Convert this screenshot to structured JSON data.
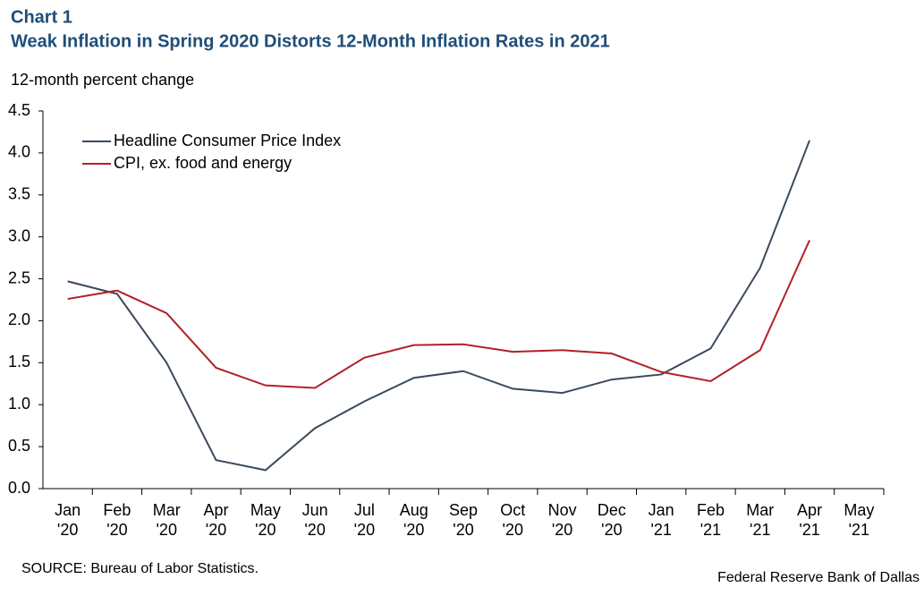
{
  "chart_data": {
    "type": "line",
    "label": "Chart 1",
    "title": "Weak Inflation in Spring 2020 Distorts 12-Month Inflation Rates in 2021",
    "y_label": "12-month percent change",
    "source": "SOURCE: Bureau of Labor Statistics.",
    "credit": "Federal Reserve Bank of Dallas",
    "categories": [
      [
        "Jan",
        "'20"
      ],
      [
        "Feb",
        "'20"
      ],
      [
        "Mar",
        "'20"
      ],
      [
        "Apr",
        "'20"
      ],
      [
        "May",
        "'20"
      ],
      [
        "Jun",
        "'20"
      ],
      [
        "Jul",
        "'20"
      ],
      [
        "Aug",
        "'20"
      ],
      [
        "Sep",
        "'20"
      ],
      [
        "Oct",
        "'20"
      ],
      [
        "Nov",
        "'20"
      ],
      [
        "Dec",
        "'20"
      ],
      [
        "Jan",
        "'21"
      ],
      [
        "Feb",
        "'21"
      ],
      [
        "Mar",
        "'21"
      ],
      [
        "Apr",
        "'21"
      ],
      [
        "May",
        "'21"
      ]
    ],
    "series": [
      {
        "name": "Headline Consumer Price Index",
        "color": "#3a4a5c",
        "values": [
          2.47,
          2.32,
          1.5,
          0.34,
          0.22,
          0.72,
          1.04,
          1.32,
          1.4,
          1.19,
          1.14,
          1.3,
          1.36,
          1.67,
          2.63,
          4.15,
          null
        ]
      },
      {
        "name": "CPI, ex. food and energy",
        "color": "#b22028",
        "values": [
          2.26,
          2.36,
          2.09,
          1.44,
          1.23,
          1.2,
          1.56,
          1.71,
          1.72,
          1.63,
          1.65,
          1.61,
          1.39,
          1.28,
          1.65,
          2.96,
          null
        ]
      }
    ],
    "ylim": [
      0,
      4.5
    ],
    "yticks": [
      {
        "value": 0,
        "label": "0.0"
      },
      0.5,
      {
        "value": 1,
        "label": "1.0"
      },
      1.5,
      {
        "value": 2,
        "label": "2.0"
      },
      2.5,
      {
        "value": 3,
        "label": "3.0"
      },
      3.5,
      {
        "value": 4,
        "label": "4.0"
      },
      4.5
    ],
    "legend": "upper left",
    "grid": false
  }
}
